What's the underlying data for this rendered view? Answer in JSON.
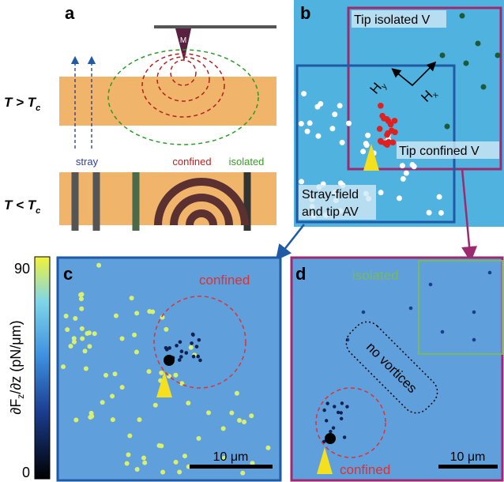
{
  "panel_a": {
    "label": "a",
    "tip": "M",
    "above": {
      "main": "T > T",
      "sub": "c"
    },
    "below": {
      "main": "T < T",
      "sub": "c"
    },
    "stray": "stray",
    "confined": "confined",
    "isolated": "isolated"
  },
  "panel_b": {
    "label": "b",
    "isolated": "Tip isolated V",
    "confined": "Tip confined V",
    "stray_line1": "Stray-field",
    "stray_line2": "and tip AV",
    "hy": {
      "main": "H",
      "sub": "y"
    },
    "hx": {
      "main": "H",
      "sub": "x"
    }
  },
  "colorbar": {
    "max": "90",
    "min": "0",
    "label": {
      "a": "∂F",
      "sub": "z",
      "b": "/∂z (pN/μm)"
    }
  },
  "panel_c": {
    "label": "c",
    "confined": "confined",
    "scale": "10 μm"
  },
  "panel_d": {
    "label": "d",
    "isolated": "isolated",
    "no_vortices": "no vortices",
    "confined": "confined",
    "scale": "10 μm"
  }
}
